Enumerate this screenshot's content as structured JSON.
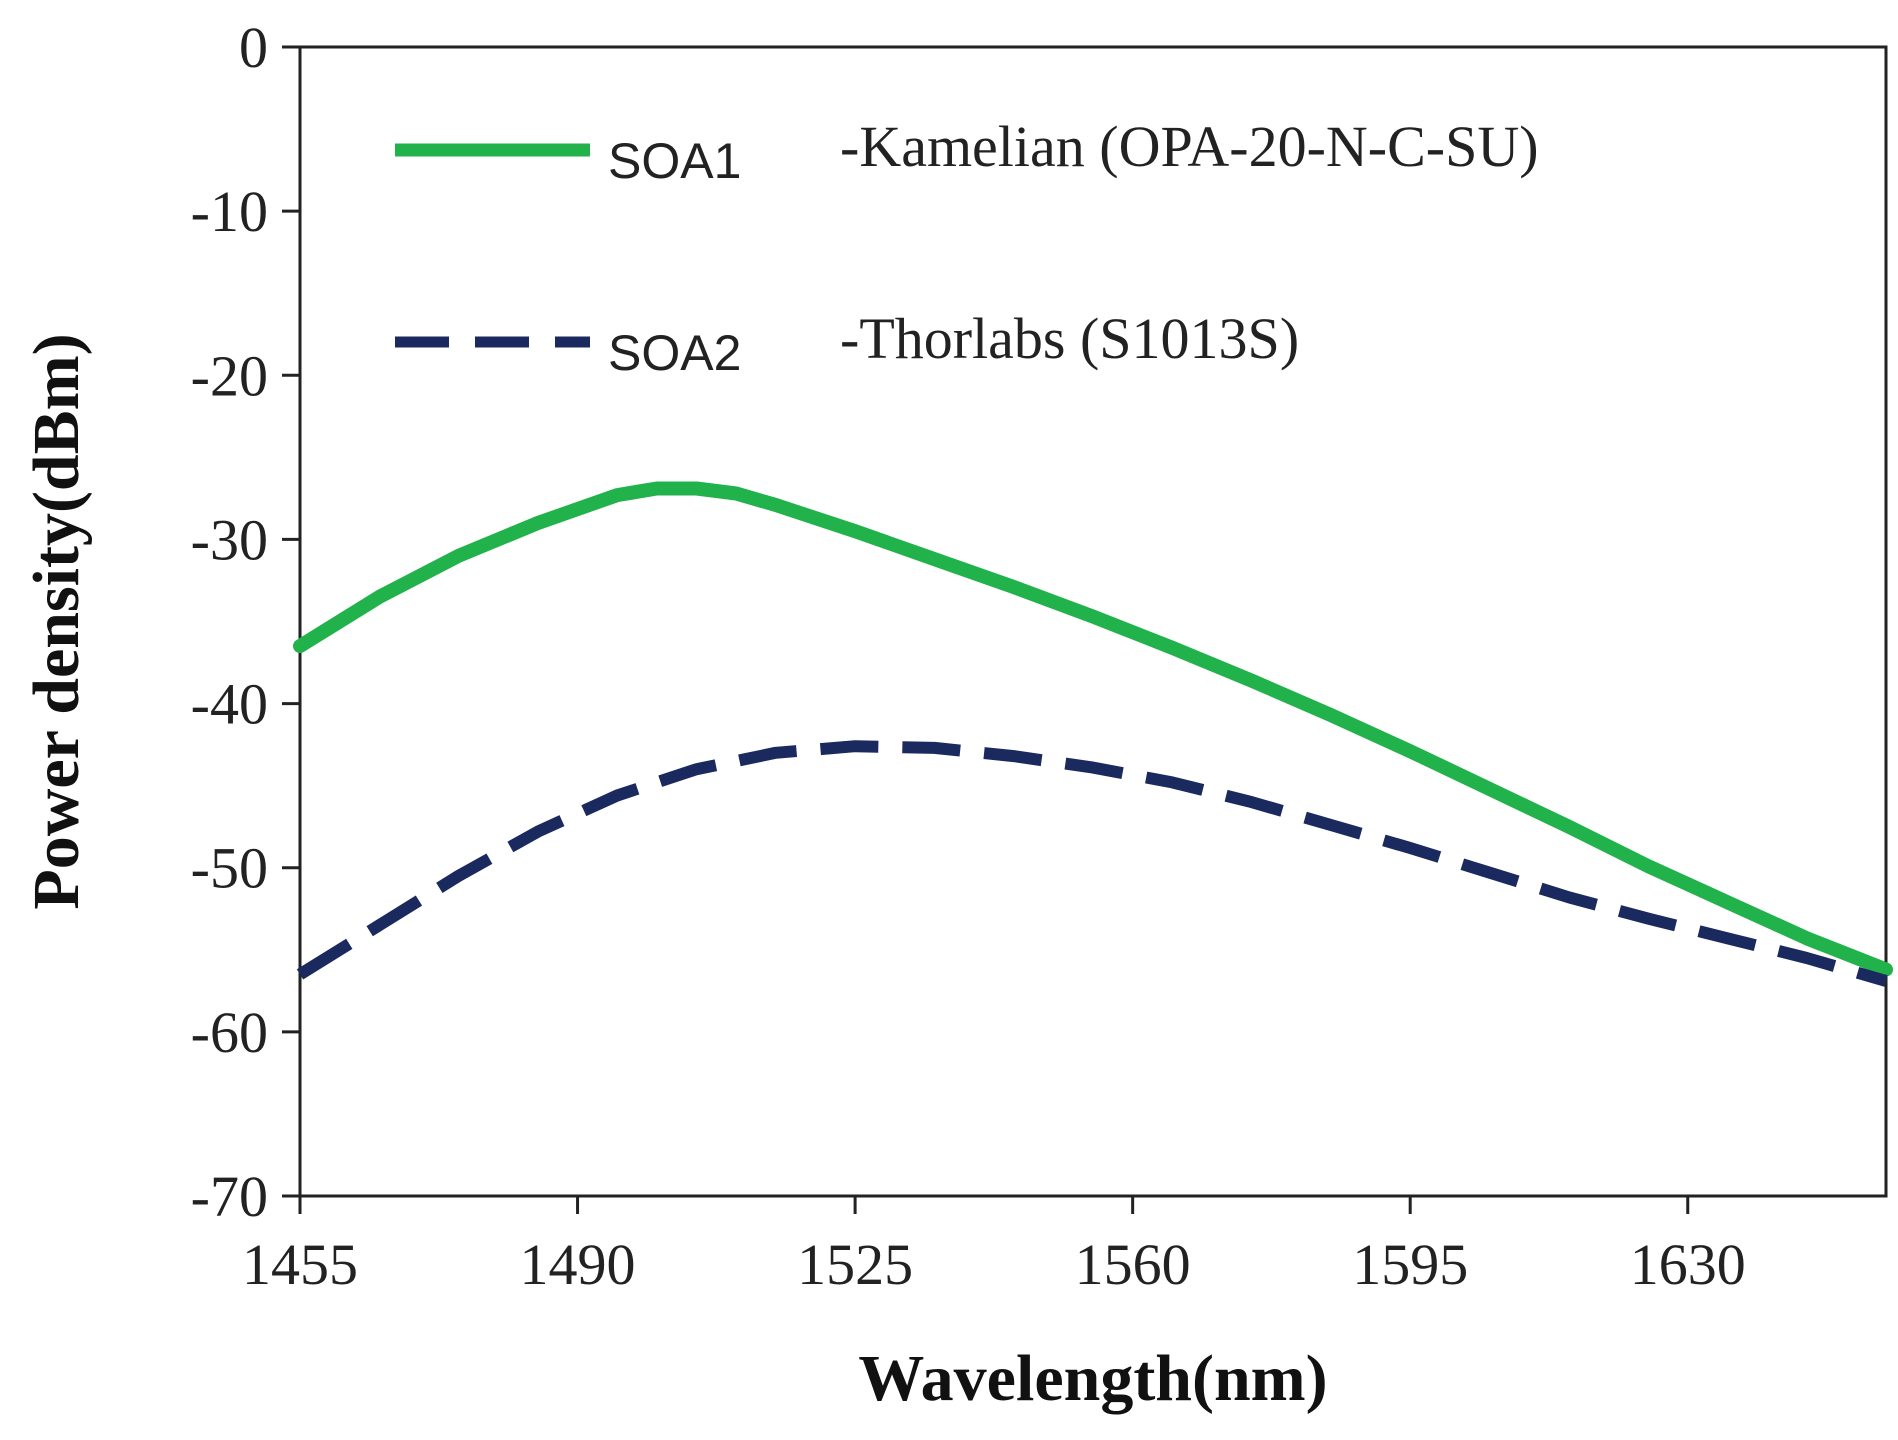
{
  "chart_data": {
    "type": "line",
    "title": "",
    "xlabel": "Wavelength(nm)",
    "ylabel": "Power density(dBm)",
    "xlim": [
      1455,
      1655
    ],
    "ylim": [
      -70,
      0
    ],
    "xticks": [
      1455,
      1490,
      1525,
      1560,
      1595,
      1630
    ],
    "yticks": [
      0,
      -10,
      -20,
      -30,
      -40,
      -50,
      -60,
      -70
    ],
    "grid": false,
    "legend": "top",
    "series": [
      {
        "name": "SOA1",
        "description": "-Kamelian  (OPA-20-N-C-SU)",
        "color": "#22b24c",
        "style": "solid",
        "x": [
          1455,
          1465,
          1475,
          1485,
          1495,
          1500,
          1505,
          1510,
          1515,
          1525,
          1535,
          1545,
          1555,
          1565,
          1575,
          1585,
          1595,
          1605,
          1615,
          1625,
          1635,
          1645,
          1655
        ],
        "y": [
          -36.5,
          -33.5,
          -31.0,
          -29.0,
          -27.3,
          -26.9,
          -26.9,
          -27.2,
          -27.9,
          -29.5,
          -31.2,
          -32.9,
          -34.7,
          -36.6,
          -38.6,
          -40.7,
          -42.9,
          -45.2,
          -47.5,
          -49.9,
          -52.1,
          -54.3,
          -56.2
        ]
      },
      {
        "name": "SOA2",
        "description": "-Thorlabs (S1013S)",
        "color": "#1a2a5e",
        "style": "dashed",
        "x": [
          1455,
          1465,
          1475,
          1485,
          1495,
          1505,
          1515,
          1525,
          1535,
          1545,
          1555,
          1565,
          1575,
          1585,
          1595,
          1605,
          1615,
          1625,
          1635,
          1645,
          1655
        ],
        "y": [
          -56.5,
          -53.5,
          -50.5,
          -47.8,
          -45.6,
          -44.0,
          -43.0,
          -42.6,
          -42.7,
          -43.2,
          -43.9,
          -44.8,
          -46.0,
          -47.4,
          -48.8,
          -50.3,
          -51.8,
          -53.1,
          -54.3,
          -55.5,
          -56.9
        ]
      }
    ]
  }
}
